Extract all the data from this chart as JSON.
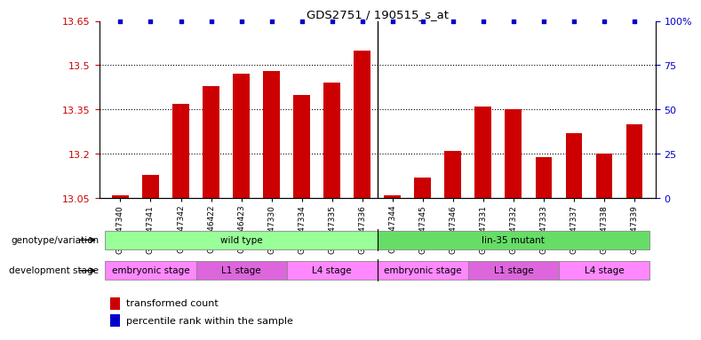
{
  "title": "GDS2751 / 190515_s_at",
  "samples": [
    "GSM147340",
    "GSM147341",
    "GSM147342",
    "GSM146422",
    "GSM146423",
    "GSM147330",
    "GSM147334",
    "GSM147335",
    "GSM147336",
    "GSM147344",
    "GSM147345",
    "GSM147346",
    "GSM147331",
    "GSM147332",
    "GSM147333",
    "GSM147337",
    "GSM147338",
    "GSM147339"
  ],
  "values": [
    13.06,
    13.13,
    13.37,
    13.43,
    13.47,
    13.48,
    13.4,
    13.44,
    13.55,
    13.06,
    13.12,
    13.21,
    13.36,
    13.35,
    13.19,
    13.27,
    13.2,
    13.3
  ],
  "percentile_values": [
    100,
    100,
    100,
    100,
    100,
    100,
    100,
    100,
    100,
    100,
    100,
    100,
    100,
    100,
    100,
    100,
    100,
    100
  ],
  "y_min": 13.05,
  "y_max": 13.65,
  "y_ticks_left": [
    13.05,
    13.2,
    13.35,
    13.5,
    13.65
  ],
  "y_ticks_right": [
    0,
    25,
    50,
    75,
    100
  ],
  "bar_color": "#cc0000",
  "dot_color": "#0000cc",
  "background_color": "#ffffff",
  "tick_label_color_left": "#cc0000",
  "tick_label_color_right": "#0000cc",
  "separator_index": 9,
  "genotype_groups": [
    {
      "label": "wild type",
      "start": 0,
      "end": 9,
      "color": "#99ff99"
    },
    {
      "label": "lin-35 mutant",
      "start": 9,
      "end": 18,
      "color": "#66dd66"
    }
  ],
  "stage_groups": [
    {
      "label": "embryonic stage",
      "start": 0,
      "end": 3,
      "color": "#ff88ff"
    },
    {
      "label": "L1 stage",
      "start": 3,
      "end": 6,
      "color": "#dd66dd"
    },
    {
      "label": "L4 stage",
      "start": 6,
      "end": 9,
      "color": "#ff88ff"
    },
    {
      "label": "embryonic stage",
      "start": 9,
      "end": 12,
      "color": "#ff88ff"
    },
    {
      "label": "L1 stage",
      "start": 12,
      "end": 15,
      "color": "#dd66dd"
    },
    {
      "label": "L4 stage",
      "start": 15,
      "end": 18,
      "color": "#ff88ff"
    }
  ],
  "legend_items": [
    {
      "color": "#cc0000",
      "label": "transformed count"
    },
    {
      "color": "#0000cc",
      "label": "percentile rank within the sample"
    }
  ],
  "genotype_label": "genotype/variation",
  "stage_label": "development stage"
}
